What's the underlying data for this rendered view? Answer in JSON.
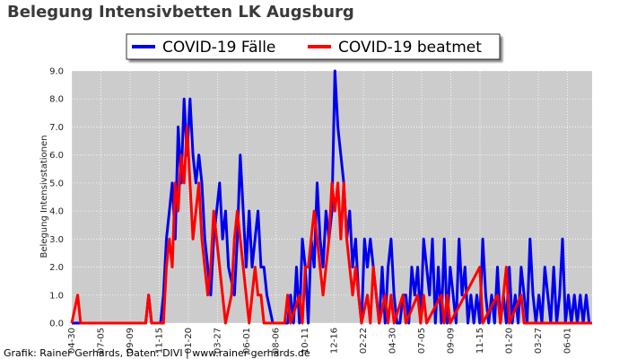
{
  "chart_data": {
    "type": "line",
    "title": "Belegung Intensivbetten LK Augsburg",
    "xlabel": "",
    "ylabel": "Belegung Intensivstationen",
    "ylim": [
      0,
      9
    ],
    "yticks": [
      "0.0",
      "1.0",
      "2.0",
      "3.0",
      "4.0",
      "5.0",
      "6.0",
      "7.0",
      "8.0",
      "9.0"
    ],
    "xticks": [
      "04-30",
      "07-05",
      "09-09",
      "11-15",
      "01-20",
      "03-27",
      "06-01",
      "08-06",
      "10-11",
      "12-16",
      "02-22",
      "04-30",
      "07-05",
      "09-09",
      "11-15",
      "01-20",
      "03-27",
      "06-01"
    ],
    "grid": true,
    "legend_position": "top-center",
    "credit": "Grafik: Rainer Gerhards, Daten: DIVI | www.rainer-gerhards.de",
    "series": [
      {
        "name": "COVID-19 Fälle",
        "color": "#0000ee",
        "points": [
          [
            0,
            0
          ],
          [
            25,
            0
          ],
          [
            26,
            1
          ],
          [
            27,
            0
          ],
          [
            30,
            0
          ],
          [
            31,
            1
          ],
          [
            32,
            3
          ],
          [
            33,
            4
          ],
          [
            34,
            5
          ],
          [
            35,
            3
          ],
          [
            36,
            7
          ],
          [
            37,
            5
          ],
          [
            38,
            8
          ],
          [
            39,
            6
          ],
          [
            40,
            8
          ],
          [
            41,
            6
          ],
          [
            42,
            5
          ],
          [
            43,
            6
          ],
          [
            44,
            5
          ],
          [
            45,
            3
          ],
          [
            46,
            2
          ],
          [
            47,
            1
          ],
          [
            48,
            3
          ],
          [
            49,
            4
          ],
          [
            50,
            5
          ],
          [
            51,
            3
          ],
          [
            52,
            4
          ],
          [
            53,
            2
          ],
          [
            55,
            1
          ],
          [
            56,
            3
          ],
          [
            57,
            6
          ],
          [
            58,
            4
          ],
          [
            59,
            2
          ],
          [
            60,
            4
          ],
          [
            61,
            2
          ],
          [
            62,
            3
          ],
          [
            63,
            4
          ],
          [
            64,
            2
          ],
          [
            65,
            2
          ],
          [
            66,
            1
          ],
          [
            68,
            0
          ],
          [
            73,
            0
          ],
          [
            74,
            1
          ],
          [
            75,
            0
          ],
          [
            76,
            2
          ],
          [
            77,
            0
          ],
          [
            78,
            3
          ],
          [
            79,
            2
          ],
          [
            80,
            0
          ],
          [
            81,
            3
          ],
          [
            82,
            2
          ],
          [
            83,
            5
          ],
          [
            84,
            3
          ],
          [
            85,
            2
          ],
          [
            86,
            4
          ],
          [
            87,
            3
          ],
          [
            88,
            4
          ],
          [
            89,
            9
          ],
          [
            90,
            7
          ],
          [
            91,
            6
          ],
          [
            92,
            5
          ],
          [
            93,
            3
          ],
          [
            94,
            4
          ],
          [
            95,
            2
          ],
          [
            96,
            3
          ],
          [
            97,
            1
          ],
          [
            98,
            0
          ],
          [
            99,
            3
          ],
          [
            100,
            2
          ],
          [
            101,
            3
          ],
          [
            102,
            2
          ],
          [
            103,
            1
          ],
          [
            104,
            0
          ],
          [
            105,
            2
          ],
          [
            106,
            0
          ],
          [
            107,
            2
          ],
          [
            108,
            3
          ],
          [
            109,
            1
          ],
          [
            110,
            0
          ],
          [
            111,
            0
          ],
          [
            112,
            1
          ],
          [
            113,
            1
          ],
          [
            114,
            0
          ],
          [
            115,
            2
          ],
          [
            116,
            1
          ],
          [
            117,
            2
          ],
          [
            118,
            0
          ],
          [
            119,
            3
          ],
          [
            120,
            2
          ],
          [
            121,
            1
          ],
          [
            122,
            3
          ],
          [
            123,
            0
          ],
          [
            124,
            2
          ],
          [
            125,
            0
          ],
          [
            126,
            3
          ],
          [
            127,
            0
          ],
          [
            128,
            2
          ],
          [
            129,
            1
          ],
          [
            130,
            0
          ],
          [
            131,
            3
          ],
          [
            132,
            1
          ],
          [
            133,
            2
          ],
          [
            134,
            0
          ],
          [
            135,
            1
          ],
          [
            136,
            0
          ],
          [
            137,
            1
          ],
          [
            138,
            0
          ],
          [
            139,
            3
          ],
          [
            140,
            1
          ],
          [
            141,
            0
          ],
          [
            142,
            1
          ],
          [
            143,
            0
          ],
          [
            144,
            2
          ],
          [
            145,
            0
          ],
          [
            146,
            1
          ],
          [
            147,
            0
          ],
          [
            148,
            2
          ],
          [
            149,
            0
          ],
          [
            150,
            1
          ],
          [
            151,
            0
          ],
          [
            152,
            2
          ],
          [
            153,
            1
          ],
          [
            154,
            0
          ],
          [
            155,
            3
          ],
          [
            156,
            1
          ],
          [
            157,
            0
          ],
          [
            158,
            1
          ],
          [
            159,
            0
          ],
          [
            160,
            2
          ],
          [
            161,
            1
          ],
          [
            162,
            0
          ],
          [
            163,
            2
          ],
          [
            164,
            0
          ],
          [
            165,
            1
          ],
          [
            166,
            3
          ],
          [
            167,
            0
          ],
          [
            168,
            1
          ],
          [
            169,
            0
          ],
          [
            170,
            1
          ],
          [
            171,
            0
          ],
          [
            172,
            1
          ],
          [
            173,
            0
          ],
          [
            174,
            1
          ],
          [
            175,
            0
          ],
          [
            176,
            0
          ]
        ]
      },
      {
        "name": "COVID-19 beatmet",
        "color": "#ff0000",
        "points": [
          [
            0,
            0
          ],
          [
            2,
            1
          ],
          [
            3,
            0
          ],
          [
            25,
            0
          ],
          [
            26,
            1
          ],
          [
            27,
            0
          ],
          [
            31,
            0
          ],
          [
            32,
            2
          ],
          [
            33,
            3
          ],
          [
            34,
            2
          ],
          [
            35,
            5
          ],
          [
            36,
            4
          ],
          [
            37,
            6
          ],
          [
            38,
            5
          ],
          [
            39,
            7
          ],
          [
            40,
            5
          ],
          [
            41,
            3
          ],
          [
            42,
            4
          ],
          [
            43,
            5
          ],
          [
            44,
            3
          ],
          [
            45,
            2
          ],
          [
            46,
            1
          ],
          [
            47,
            2
          ],
          [
            48,
            4
          ],
          [
            49,
            3
          ],
          [
            50,
            2
          ],
          [
            51,
            1
          ],
          [
            52,
            0
          ],
          [
            54,
            1
          ],
          [
            55,
            3
          ],
          [
            56,
            4
          ],
          [
            57,
            3
          ],
          [
            58,
            2
          ],
          [
            59,
            1
          ],
          [
            60,
            0
          ],
          [
            61,
            1
          ],
          [
            62,
            2
          ],
          [
            63,
            1
          ],
          [
            64,
            1
          ],
          [
            65,
            0
          ],
          [
            72,
            0
          ],
          [
            73,
            1
          ],
          [
            74,
            0
          ],
          [
            77,
            1
          ],
          [
            78,
            0
          ],
          [
            79,
            2
          ],
          [
            80,
            2
          ],
          [
            81,
            3
          ],
          [
            82,
            4
          ],
          [
            83,
            3
          ],
          [
            84,
            2
          ],
          [
            85,
            1
          ],
          [
            86,
            2
          ],
          [
            87,
            3
          ],
          [
            88,
            5
          ],
          [
            89,
            4
          ],
          [
            90,
            5
          ],
          [
            91,
            3
          ],
          [
            92,
            5
          ],
          [
            93,
            3
          ],
          [
            94,
            2
          ],
          [
            95,
            1
          ],
          [
            96,
            2
          ],
          [
            97,
            1
          ],
          [
            98,
            0
          ],
          [
            100,
            1
          ],
          [
            101,
            0
          ],
          [
            102,
            2
          ],
          [
            103,
            1
          ],
          [
            104,
            0
          ],
          [
            106,
            1
          ],
          [
            107,
            0
          ],
          [
            108,
            1
          ],
          [
            109,
            0
          ],
          [
            112,
            1
          ],
          [
            113,
            0
          ],
          [
            117,
            1
          ],
          [
            118,
            0
          ],
          [
            119,
            1
          ],
          [
            120,
            0
          ],
          [
            125,
            1
          ],
          [
            126,
            0
          ],
          [
            127,
            1
          ],
          [
            128,
            0
          ],
          [
            138,
            2
          ],
          [
            139,
            0
          ],
          [
            144,
            1
          ],
          [
            145,
            0
          ],
          [
            147,
            2
          ],
          [
            148,
            0
          ],
          [
            152,
            1
          ],
          [
            153,
            0
          ],
          [
            176,
            0
          ]
        ]
      }
    ]
  }
}
